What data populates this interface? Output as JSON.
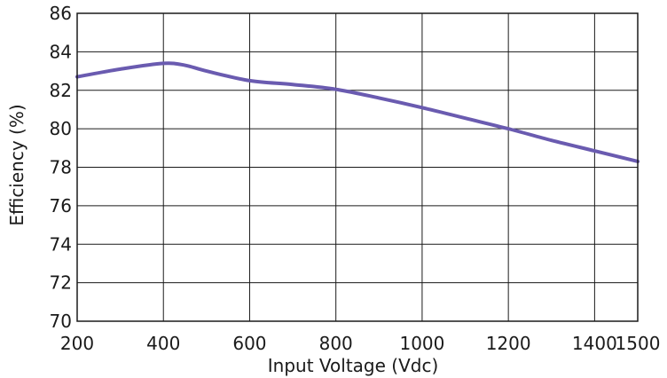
{
  "chart_data": {
    "type": "line",
    "title": "",
    "xlabel": "Input Voltage (Vdc)",
    "ylabel": "Efficiency (%)",
    "xlim": [
      200,
      1500
    ],
    "ylim": [
      70,
      86
    ],
    "x_ticks": [
      200,
      400,
      600,
      800,
      1000,
      1200,
      1400,
      1500
    ],
    "y_ticks": [
      70,
      72,
      74,
      76,
      78,
      80,
      82,
      84,
      86
    ],
    "x_tick_labels": [
      "200",
      "400",
      "600",
      "800",
      "1000",
      "1200",
      "1400",
      "1500"
    ],
    "y_tick_labels": [
      "70",
      "72",
      "74",
      "76",
      "78",
      "80",
      "82",
      "84",
      "86"
    ],
    "grid": true,
    "legend": "none",
    "series": [
      {
        "color": "#6a5bb0",
        "x": [
          200,
          300,
          400,
          450,
          500,
          600,
          700,
          800,
          900,
          1000,
          1100,
          1200,
          1300,
          1400,
          1500
        ],
        "y": [
          82.7,
          83.1,
          83.4,
          83.3,
          83.0,
          82.5,
          82.3,
          82.05,
          81.6,
          81.1,
          80.55,
          80.0,
          79.4,
          78.85,
          78.3
        ]
      }
    ]
  }
}
